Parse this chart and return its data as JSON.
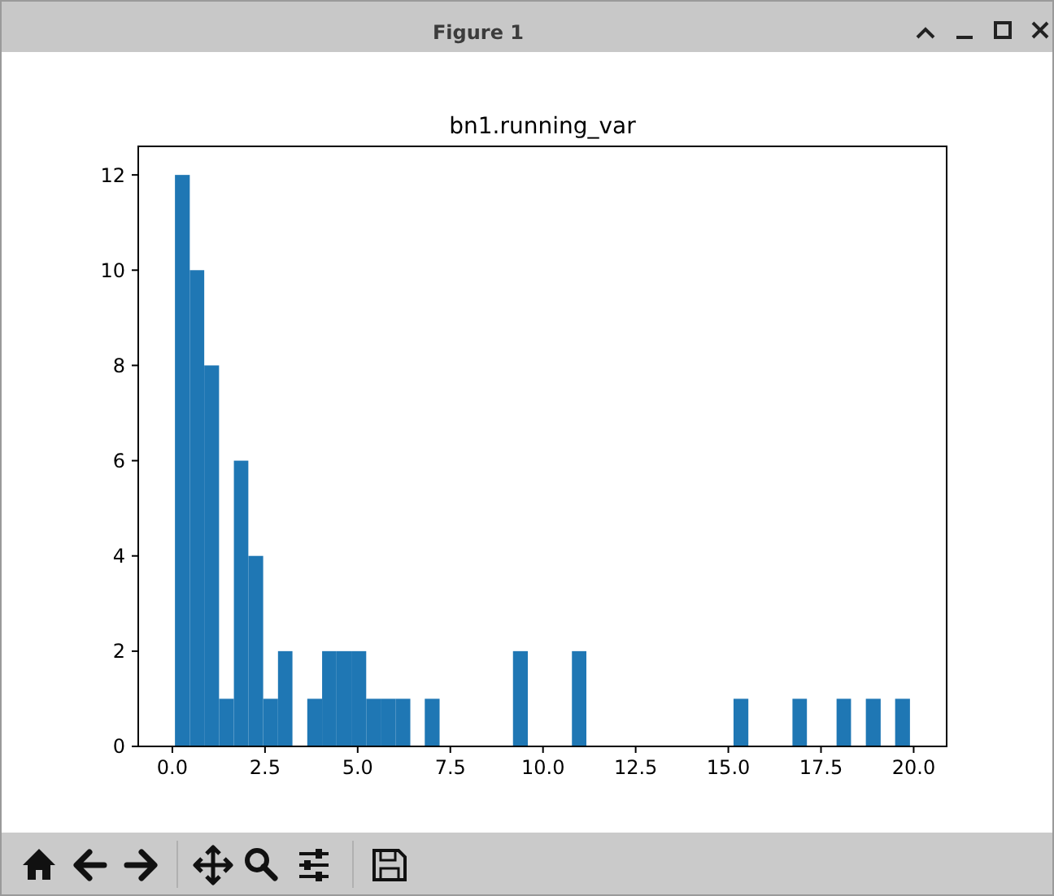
{
  "chart_data": {
    "type": "histogram",
    "title": "bn1.running_var",
    "bins": [
      0.07,
      0.47,
      0.86,
      1.26,
      1.66,
      2.05,
      2.45,
      2.85,
      3.24,
      3.64,
      4.04,
      4.43,
      4.83,
      5.23,
      5.62,
      6.02,
      6.42,
      6.81,
      7.21,
      7.61,
      8.0,
      8.4,
      8.8,
      9.19,
      9.59,
      9.99,
      10.38,
      10.78,
      11.17,
      11.57,
      11.97,
      12.36,
      12.76,
      13.16,
      13.55,
      13.95,
      14.35,
      14.74,
      15.14,
      15.54,
      15.93,
      16.33,
      16.73,
      17.12,
      17.52,
      17.92,
      18.31,
      18.71,
      19.11,
      19.5,
      19.9
    ],
    "values": [
      12,
      10,
      8,
      1,
      6,
      4,
      1,
      2,
      0,
      1,
      2,
      2,
      2,
      1,
      1,
      1,
      0,
      1,
      0,
      0,
      0,
      0,
      0,
      2,
      0,
      0,
      0,
      2,
      0,
      0,
      0,
      0,
      0,
      0,
      0,
      0,
      0,
      0,
      1,
      0,
      0,
      0,
      1,
      0,
      0,
      1,
      0,
      1,
      0,
      1
    ],
    "color": "#1f77b4",
    "xlim": [
      -0.92,
      20.89
    ],
    "ylim": [
      0,
      12.6
    ],
    "xticks": [
      {
        "value": 0,
        "label": "0.0"
      },
      {
        "value": 2.5,
        "label": "2.5"
      },
      {
        "value": 5,
        "label": "5.0"
      },
      {
        "value": 7.5,
        "label": "7.5"
      },
      {
        "value": 10,
        "label": "10.0"
      },
      {
        "value": 12.5,
        "label": "12.5"
      },
      {
        "value": 15,
        "label": "15.0"
      },
      {
        "value": 17.5,
        "label": "17.5"
      },
      {
        "value": 20,
        "label": "20.0"
      }
    ],
    "yticks": [
      0,
      2,
      4,
      6,
      8,
      10,
      12
    ],
    "annotations": [
      "Figure 1"
    ]
  }
}
